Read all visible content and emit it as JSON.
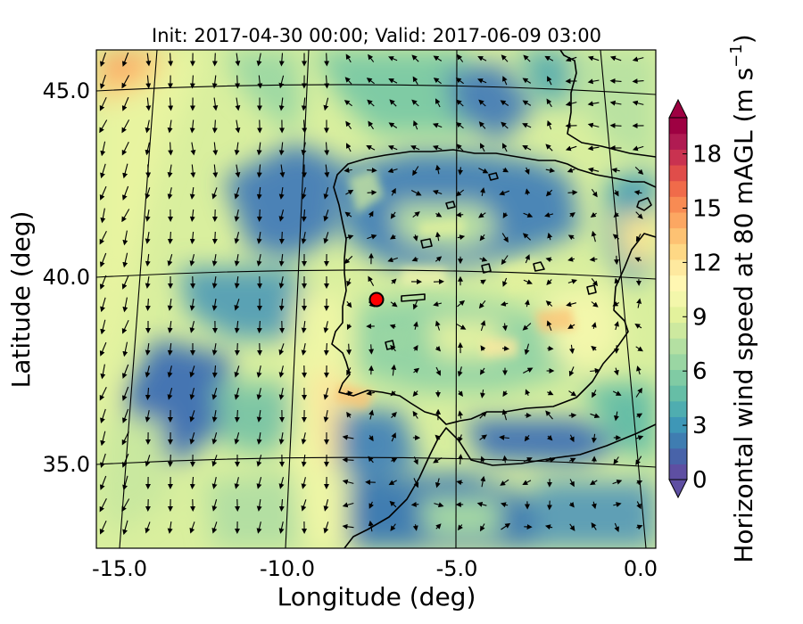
{
  "title": "Init: 2017-04-30 00:00; Valid: 2017-06-09 03:00",
  "xlabel": "Longitude (deg)",
  "ylabel": "Latitude (deg)",
  "colorbar": {
    "label_main": "Horizontal wind speed at 80 mAGL (m s",
    "label_sup": "−1",
    "label_close": ")",
    "ticks": [
      "0",
      "3",
      "6",
      "9",
      "12",
      "15",
      "18"
    ],
    "tick_values": [
      0,
      3,
      6,
      9,
      12,
      15,
      18
    ],
    "range": [
      0,
      20
    ],
    "extend": "both",
    "colors": [
      "#5e4fa2",
      "#4863a9",
      "#3f7db1",
      "#3e97b7",
      "#4fadb0",
      "#66bea6",
      "#80cba4",
      "#9ad6a3",
      "#b4e0a2",
      "#cde99f",
      "#e3f29c",
      "#f3f7ab",
      "#fff7b2",
      "#fee99f",
      "#fed885",
      "#fdc273",
      "#fca762",
      "#f88b53",
      "#f06b4a",
      "#e04d4a",
      "#c93250",
      "#b01b52",
      "#9e0142"
    ]
  },
  "chart_data": {
    "type": "heatmap",
    "title": "Init: 2017-04-30 00:00; Valid: 2017-06-09 03:00",
    "xlabel": "Longitude (deg)",
    "ylabel": "Latitude (deg)",
    "x_ticks": [
      -15.0,
      -10.0,
      -5.0,
      0.0
    ],
    "x_tick_labels": [
      "-15.0",
      "-10.0",
      "-5.0",
      "0.0"
    ],
    "y_ticks": [
      35.0,
      40.0,
      45.0
    ],
    "y_tick_labels": [
      "35.0",
      "40.0",
      "45.0"
    ],
    "xlim": [
      -15.8,
      0.4
    ],
    "ylim": [
      32.8,
      46.1
    ],
    "field": "Horizontal wind speed at 80 mAGL",
    "units": "m s-1",
    "value_range": [
      0,
      20
    ],
    "projection": "lambert-conformal",
    "overlay": "wind vectors (quiver)",
    "marker": {
      "lon": -7.6,
      "lat": 39.35,
      "color": "#ff0000"
    },
    "grid": true
  }
}
